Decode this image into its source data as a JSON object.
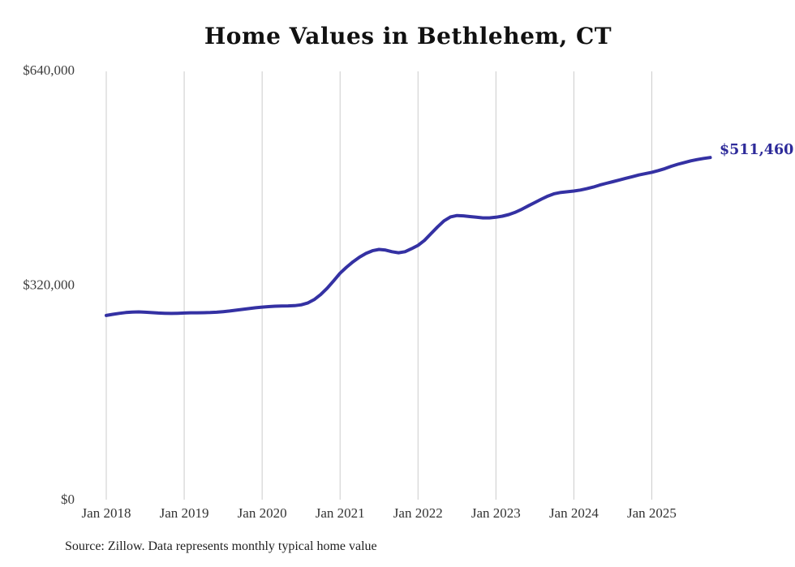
{
  "chart": {
    "title": "Home Values in Bethlehem, CT",
    "end_label": "$511,460",
    "source_note": "Source: Zillow. Data represents monthly typical home value"
  },
  "colors": {
    "line": "#3431a3",
    "grid": "#cccccc",
    "end_label": "#2e2b9a",
    "axis_text_y": "#3d3d3d",
    "axis_text_x": "#333333",
    "title": "#111111"
  },
  "chart_data": {
    "type": "line",
    "title": "Home Values in Bethlehem, CT",
    "series_name": "Monthly typical home value (Zillow)",
    "frequency": "monthly",
    "x_start": "Jan 2018",
    "x_end": "Oct 2025",
    "ylim": [
      0,
      640000
    ],
    "grid": "vertical-only",
    "legend": "none",
    "final_value": 511460,
    "final_value_label": "$511,460",
    "y_ticks": [
      {
        "label": "$640,000",
        "value": 640000
      },
      {
        "label": "$320,000",
        "value": 320000
      },
      {
        "label": "$0",
        "value": 0
      }
    ],
    "x_tick_labels": [
      "Jan 2018",
      "Jan 2019",
      "Jan 2020",
      "Jan 2021",
      "Jan 2022",
      "Jan 2023",
      "Jan 2024",
      "Jan 2025"
    ],
    "x_tick_month_indices": [
      0,
      12,
      24,
      36,
      48,
      60,
      72,
      84
    ],
    "values": [
      276000,
      277600,
      279100,
      280300,
      281100,
      281300,
      280800,
      280200,
      279600,
      279200,
      279000,
      279200,
      279600,
      279900,
      280000,
      280100,
      280300,
      280800,
      281600,
      282600,
      283800,
      285000,
      286200,
      287400,
      288400,
      289200,
      289800,
      290100,
      290200,
      290600,
      291800,
      294500,
      299500,
      307000,
      316500,
      327500,
      339000,
      348000,
      356000,
      363000,
      368500,
      372500,
      374500,
      373500,
      371000,
      369500,
      371000,
      375500,
      380500,
      388000,
      398000,
      408000,
      417000,
      423000,
      425000,
      424500,
      423500,
      422500,
      421500,
      421500,
      422500,
      424000,
      426500,
      430000,
      434500,
      439500,
      444500,
      449500,
      454000,
      457500,
      459500,
      460500,
      461500,
      463000,
      465000,
      467500,
      470500,
      473000,
      475500,
      478000,
      480500,
      483000,
      485500,
      487500,
      489500,
      492000,
      495000,
      498500,
      501500,
      504000,
      506500,
      508500,
      510200,
      511460
    ]
  }
}
